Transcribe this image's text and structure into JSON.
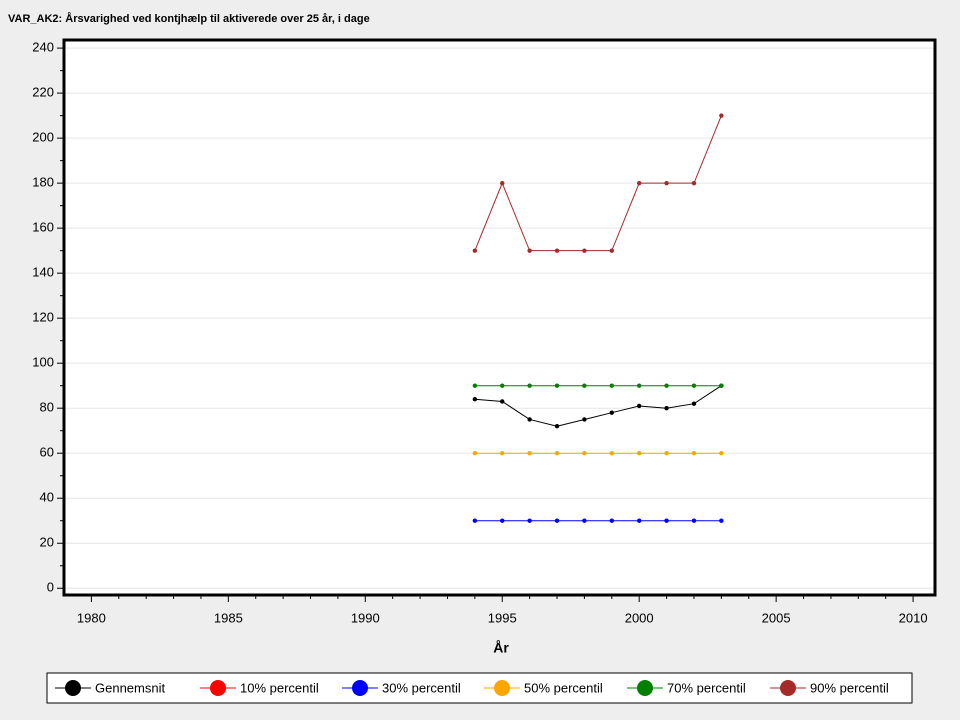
{
  "chart_data": {
    "type": "line",
    "title": "VAR_AK2: Årsvarighed ved kontjhælp til aktiverede over 25 år, i dage",
    "x_label": "År",
    "x": [
      1994,
      1995,
      1996,
      1997,
      1998,
      1999,
      2000,
      2001,
      2002,
      2003
    ],
    "series": [
      {
        "name": "Gennemsnit",
        "color": "#000000",
        "values": [
          84,
          83,
          75,
          72,
          75,
          78,
          81,
          80,
          82,
          90
        ]
      },
      {
        "name": "10% percentil",
        "color": "#ff0000",
        "values": [
          null,
          null,
          null,
          null,
          null,
          null,
          null,
          null,
          null,
          null
        ]
      },
      {
        "name": "30% percentil",
        "color": "#0000ff",
        "values": [
          30,
          30,
          30,
          30,
          30,
          30,
          30,
          30,
          30,
          30
        ]
      },
      {
        "name": "50% percentil",
        "color": "#ffa500",
        "values": [
          60,
          60,
          60,
          60,
          60,
          60,
          60,
          60,
          60,
          60
        ]
      },
      {
        "name": "70% percentil",
        "color": "#008000",
        "values": [
          90,
          90,
          90,
          90,
          90,
          90,
          90,
          90,
          90,
          90
        ]
      },
      {
        "name": "90% percentil",
        "color": "#a52a2a",
        "values": [
          150,
          180,
          150,
          150,
          150,
          150,
          180,
          180,
          180,
          210
        ]
      }
    ],
    "xlim": [
      1979,
      2010.8
    ],
    "xticks": [
      1980,
      1985,
      1990,
      1995,
      2000,
      2005,
      2010
    ],
    "x_minor_ticks": [
      1981,
      1982,
      1983,
      1984,
      1986,
      1987,
      1988,
      1989,
      1991,
      1992,
      1993,
      1994,
      1996,
      1997,
      1998,
      1999,
      2001,
      2002,
      2003,
      2004,
      2006,
      2007,
      2008,
      2009
    ],
    "ylim": [
      -3,
      243.6
    ],
    "yticks": [
      0,
      20,
      40,
      60,
      80,
      100,
      120,
      140,
      160,
      180,
      200,
      220,
      240
    ],
    "y_minor_ticks": [
      10,
      30,
      50,
      70,
      90,
      110,
      130,
      150,
      170,
      190,
      210,
      230
    ],
    "grid": true,
    "legend": "bottom"
  }
}
